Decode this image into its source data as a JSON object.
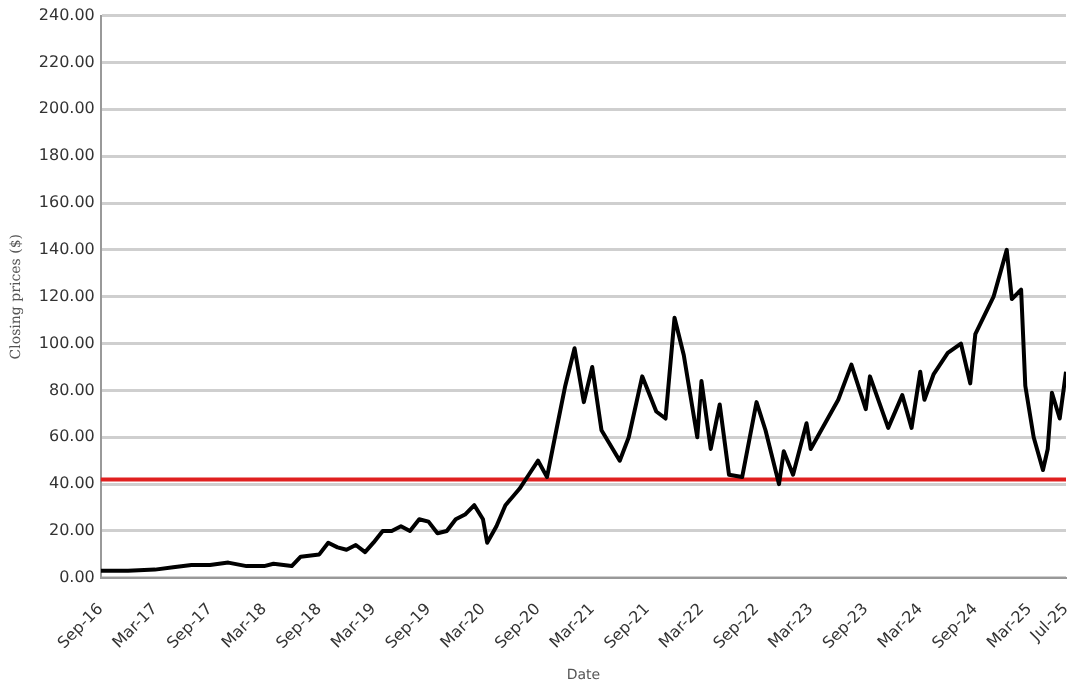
{
  "chart_data": {
    "type": "line",
    "xlabel": "Date",
    "ylabel": "Closing prices ($)",
    "x": [
      "2016-09-01",
      "2016-12-01",
      "2017-03-01",
      "2017-05-01",
      "2017-07-01",
      "2017-09-01",
      "2017-11-01",
      "2018-01-01",
      "2018-03-01",
      "2018-04-01",
      "2018-06-01",
      "2018-07-01",
      "2018-09-01",
      "2018-10-01",
      "2018-11-01",
      "2018-12-01",
      "2019-01-01",
      "2019-02-01",
      "2019-03-01",
      "2019-04-01",
      "2019-05-01",
      "2019-06-01",
      "2019-07-01",
      "2019-08-01",
      "2019-09-01",
      "2019-10-01",
      "2019-11-01",
      "2019-12-01",
      "2020-01-01",
      "2020-02-01",
      "2020-03-01",
      "2020-03-15",
      "2020-04-15",
      "2020-05-15",
      "2020-07-01",
      "2020-08-01",
      "2020-09-01",
      "2020-10-01",
      "2020-11-01",
      "2020-12-01",
      "2021-01-01",
      "2021-02-01",
      "2021-03-01",
      "2021-04-01",
      "2021-06-01",
      "2021-07-01",
      "2021-08-15",
      "2021-10-01",
      "2021-11-01",
      "2021-12-01",
      "2022-01-01",
      "2022-02-15",
      "2022-03-01",
      "2022-04-01",
      "2022-05-01",
      "2022-06-01",
      "2022-07-15",
      "2022-09-01",
      "2022-10-01",
      "2022-11-15",
      "2022-12-01",
      "2023-01-01",
      "2023-02-15",
      "2023-03-01",
      "2023-06-01",
      "2023-07-15",
      "2023-09-01",
      "2023-09-15",
      "2023-11-15",
      "2024-01-01",
      "2024-02-01",
      "2024-03-01",
      "2024-03-15",
      "2024-04-15",
      "2024-06-01",
      "2024-07-15",
      "2024-08-15",
      "2024-09-01",
      "2024-11-01",
      "2024-12-15",
      "2025-01-01",
      "2025-02-01",
      "2025-02-15",
      "2025-03-15",
      "2025-04-15",
      "2025-05-01",
      "2025-05-15",
      "2025-06-10",
      "2025-07-01"
    ],
    "series": [
      {
        "color": "#000000",
        "values": [
          3,
          3,
          3.5,
          4.5,
          5.5,
          5.5,
          6.5,
          5,
          5,
          6,
          5,
          9,
          10,
          15,
          13,
          12,
          14,
          11,
          15,
          20,
          20,
          22,
          20,
          25,
          24,
          19,
          20,
          25,
          27,
          31,
          25,
          15,
          22,
          31,
          38,
          44,
          50,
          43,
          63,
          82,
          98,
          75,
          90,
          63,
          50,
          60,
          86,
          71,
          68,
          111,
          95,
          60,
          84,
          55,
          74,
          44,
          43,
          75,
          63,
          40,
          54,
          44,
          66,
          55,
          76,
          91,
          72,
          86,
          64,
          78,
          64,
          88,
          76,
          87,
          96,
          100,
          83,
          104,
          120,
          140,
          119,
          123,
          82,
          60,
          46,
          55,
          79,
          68,
          88
        ]
      }
    ],
    "xlim": [
      "2016-09-01",
      "2025-07-01"
    ],
    "xticks": [
      {
        "value": "2016-09-01",
        "label": "Sep-16"
      },
      {
        "value": "2017-03-01",
        "label": "Mar-17"
      },
      {
        "value": "2017-09-01",
        "label": "Sep-17"
      },
      {
        "value": "2018-03-01",
        "label": "Mar-18"
      },
      {
        "value": "2018-09-01",
        "label": "Sep-18"
      },
      {
        "value": "2019-03-01",
        "label": "Mar-19"
      },
      {
        "value": "2019-09-01",
        "label": "Sep-19"
      },
      {
        "value": "2020-03-01",
        "label": "Mar-20"
      },
      {
        "value": "2020-09-01",
        "label": "Sep-20"
      },
      {
        "value": "2021-03-01",
        "label": "Mar-21"
      },
      {
        "value": "2021-09-01",
        "label": "Sep-21"
      },
      {
        "value": "2022-03-01",
        "label": "Mar-22"
      },
      {
        "value": "2022-09-01",
        "label": "Sep-22"
      },
      {
        "value": "2023-03-01",
        "label": "Mar-23"
      },
      {
        "value": "2023-09-01",
        "label": "Sep-23"
      },
      {
        "value": "2024-03-01",
        "label": "Mar-24"
      },
      {
        "value": "2024-09-01",
        "label": "Sep-24"
      },
      {
        "value": "2025-03-01",
        "label": "Mar-25"
      },
      {
        "value": "2025-07-01",
        "label": "Jul-25"
      }
    ],
    "ylim": [
      0,
      240
    ],
    "yticks": [
      {
        "value": 0,
        "label": "0.00"
      },
      {
        "value": 20,
        "label": "20.00"
      },
      {
        "value": 40,
        "label": "40.00"
      },
      {
        "value": 60,
        "label": "60.00"
      },
      {
        "value": 80,
        "label": "80.00"
      },
      {
        "value": 100,
        "label": "100.00"
      },
      {
        "value": 120,
        "label": "120.00"
      },
      {
        "value": 140,
        "label": "140.00"
      },
      {
        "value": 160,
        "label": "160.00"
      },
      {
        "value": 180,
        "label": "180.00"
      },
      {
        "value": 200,
        "label": "200.00"
      },
      {
        "value": 220,
        "label": "220.00"
      },
      {
        "value": 240,
        "label": "240.00"
      }
    ],
    "grid": "y",
    "ref_lines": [
      {
        "axis": "y",
        "value": 42,
        "color": "#e02020"
      }
    ]
  }
}
